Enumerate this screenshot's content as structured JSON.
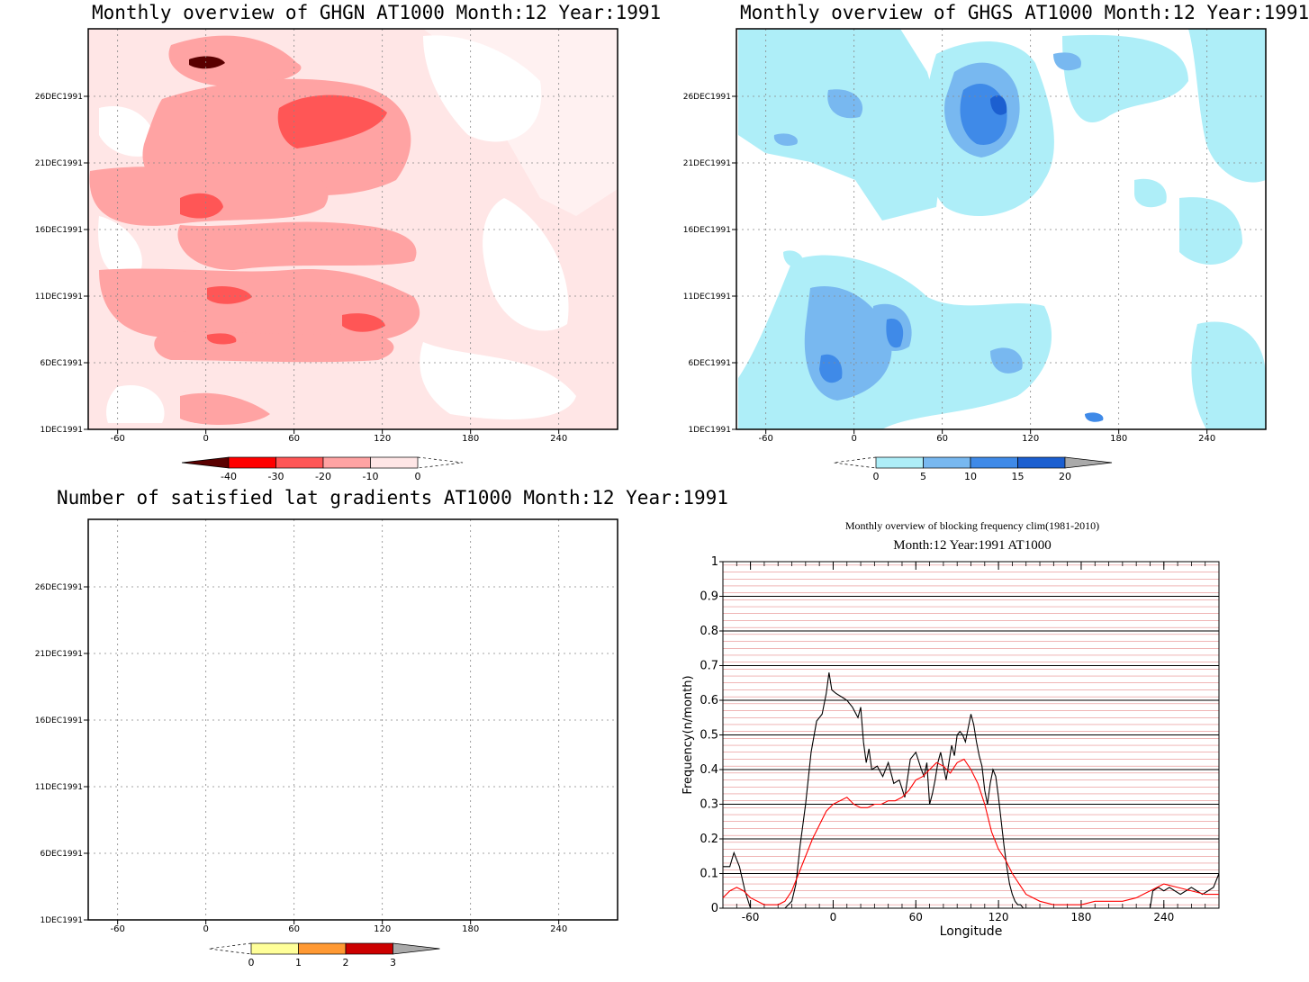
{
  "panels": {
    "ghgn": {
      "title": "Monthly overview of GHGN AT1000 Month:12 Year:1991",
      "y_ticks": [
        "1DEC1991",
        "6DEC1991",
        "11DEC1991",
        "16DEC1991",
        "21DEC1991",
        "26DEC1991"
      ],
      "x_ticks": [
        "-60",
        "0",
        "60",
        "120",
        "180",
        "240"
      ],
      "colorbar": {
        "labels": [
          "-40",
          "-30",
          "-20",
          "-10",
          "0"
        ],
        "colors": [
          "#5a0000",
          "#ff0000",
          "#ff5656",
          "#ffa3a3",
          "#ffe6e6"
        ]
      }
    },
    "ghgs": {
      "title": "Monthly overview of GHGS AT1000 Month:12 Year:1991",
      "y_ticks": [
        "1DEC1991",
        "6DEC1991",
        "11DEC1991",
        "16DEC1991",
        "21DEC1991",
        "26DEC1991"
      ],
      "x_ticks": [
        "-60",
        "0",
        "60",
        "120",
        "180",
        "240"
      ],
      "colorbar": {
        "labels": [
          "0",
          "5",
          "10",
          "15",
          "20"
        ],
        "colors": [
          "#aeeef8",
          "#78b8f0",
          "#3f8ae8",
          "#1c5fd0",
          "#aaaaaa"
        ]
      }
    },
    "lat": {
      "title": "Number of satisfied lat gradients AT1000 Month:12 Year:1991",
      "y_ticks": [
        "1DEC1991",
        "6DEC1991",
        "11DEC1991",
        "16DEC1991",
        "21DEC1991",
        "26DEC1991"
      ],
      "x_ticks": [
        "-60",
        "0",
        "60",
        "120",
        "180",
        "240"
      ],
      "colorbar": {
        "labels": [
          "0",
          "1",
          "2",
          "3"
        ],
        "colors": [
          "#ffff99",
          "#ff9933",
          "#cc0000",
          "#aaaaaa"
        ]
      }
    },
    "freq": {
      "title1": "Monthly overview of blocking frequency clim(1981-2010)",
      "title2": "Month:12 Year:1991  AT1000",
      "xlabel": "Longitude",
      "ylabel": "Frequency(n/month)"
    }
  },
  "chart_data": [
    {
      "type": "heatmap",
      "title": "Monthly overview of GHGN AT1000 Month:12 Year:1991",
      "levels": [
        -40,
        -30,
        -20,
        -10,
        0
      ],
      "x_range": [
        -80,
        280
      ],
      "y_range": [
        "1DEC1991",
        "31DEC1991"
      ]
    },
    {
      "type": "heatmap",
      "title": "Monthly overview of GHGS AT1000 Month:12 Year:1991",
      "levels": [
        0,
        5,
        10,
        15,
        20
      ],
      "x_range": [
        -80,
        280
      ],
      "y_range": [
        "1DEC1991",
        "31DEC1991"
      ]
    },
    {
      "type": "heatmap",
      "title": "Number of satisfied lat gradients AT1000 Month:12 Year:1991",
      "levels": [
        0,
        1,
        2,
        3
      ],
      "x_range": [
        -80,
        280
      ],
      "y_range": [
        "1DEC1991",
        "31DEC1991"
      ]
    },
    {
      "type": "line",
      "title": "Monthly overview of blocking frequency clim(1981-2010)",
      "subtitle": "Month:12 Year:1991  AT1000",
      "xlabel": "Longitude",
      "ylabel": "Frequency(n/month)",
      "xlim": [
        -80,
        280
      ],
      "ylim": [
        0,
        1
      ],
      "x_ticks": [
        -60,
        0,
        60,
        120,
        180,
        240
      ],
      "y_ticks": [
        0,
        0.1,
        0.2,
        0.3,
        0.4,
        0.5,
        0.6,
        0.7,
        0.8,
        0.9,
        1
      ],
      "colors": {
        "black": "#000000",
        "red": "#ff0000"
      },
      "series": [
        {
          "color": "#000000",
          "x": [
            -80,
            -75,
            -72,
            -68,
            -64,
            -60,
            -56,
            -50,
            -45,
            -40,
            -35,
            -30,
            -27,
            -24,
            -20,
            -16,
            -12,
            -8,
            -5,
            -3,
            -1,
            2,
            6,
            10,
            14,
            18,
            20,
            22,
            24,
            26,
            28,
            32,
            36,
            40,
            44,
            48,
            52,
            56,
            60,
            64,
            66,
            68,
            70,
            72,
            74,
            76,
            78,
            80,
            82,
            86,
            88,
            90,
            92,
            94,
            96,
            98,
            100,
            102,
            104,
            106,
            108,
            110,
            112,
            114,
            116,
            118,
            120,
            122,
            124,
            126,
            128,
            130,
            132,
            134,
            136,
            138,
            140,
            144,
            148,
            150,
            160,
            180,
            200,
            220,
            230,
            232,
            236,
            240,
            244,
            248,
            252,
            256,
            260,
            264,
            268,
            272,
            276,
            280
          ],
          "y": [
            0.12,
            0.12,
            0.16,
            0.12,
            0.05,
            0,
            0,
            0,
            0,
            0,
            0,
            0.02,
            0.07,
            0.18,
            0.3,
            0.45,
            0.54,
            0.56,
            0.62,
            0.68,
            0.63,
            0.62,
            0.61,
            0.6,
            0.58,
            0.55,
            0.58,
            0.48,
            0.42,
            0.46,
            0.4,
            0.41,
            0.38,
            0.42,
            0.36,
            0.37,
            0.32,
            0.43,
            0.45,
            0.4,
            0.38,
            0.42,
            0.3,
            0.33,
            0.37,
            0.42,
            0.45,
            0.41,
            0.37,
            0.47,
            0.44,
            0.5,
            0.51,
            0.5,
            0.48,
            0.52,
            0.56,
            0.53,
            0.48,
            0.44,
            0.41,
            0.34,
            0.3,
            0.36,
            0.4,
            0.38,
            0.32,
            0.25,
            0.18,
            0.12,
            0.07,
            0.04,
            0.02,
            0.01,
            0.01,
            0,
            0,
            0,
            0,
            0,
            0,
            0,
            0,
            0,
            0,
            0.05,
            0.06,
            0.05,
            0.06,
            0.05,
            0.04,
            0.05,
            0.06,
            0.05,
            0.04,
            0.05,
            0.06,
            0.1
          ]
        },
        {
          "color": "#ff0000",
          "x": [
            -80,
            -75,
            -70,
            -65,
            -60,
            -55,
            -50,
            -45,
            -40,
            -35,
            -30,
            -25,
            -20,
            -15,
            -10,
            -5,
            0,
            5,
            10,
            15,
            20,
            25,
            30,
            35,
            40,
            45,
            50,
            55,
            60,
            65,
            70,
            75,
            80,
            85,
            90,
            95,
            100,
            105,
            110,
            115,
            120,
            125,
            130,
            135,
            140,
            150,
            160,
            170,
            180,
            190,
            200,
            210,
            220,
            230,
            240,
            250,
            260,
            270,
            280
          ],
          "y": [
            0.03,
            0.05,
            0.06,
            0.05,
            0.03,
            0.02,
            0.01,
            0.01,
            0.01,
            0.02,
            0.05,
            0.1,
            0.15,
            0.2,
            0.24,
            0.28,
            0.3,
            0.31,
            0.32,
            0.3,
            0.29,
            0.29,
            0.3,
            0.3,
            0.31,
            0.31,
            0.32,
            0.34,
            0.37,
            0.38,
            0.4,
            0.42,
            0.41,
            0.39,
            0.42,
            0.43,
            0.4,
            0.36,
            0.3,
            0.22,
            0.17,
            0.14,
            0.1,
            0.07,
            0.04,
            0.02,
            0.01,
            0.01,
            0.01,
            0.02,
            0.02,
            0.02,
            0.03,
            0.05,
            0.07,
            0.06,
            0.05,
            0.04,
            0.04
          ]
        }
      ]
    }
  ]
}
